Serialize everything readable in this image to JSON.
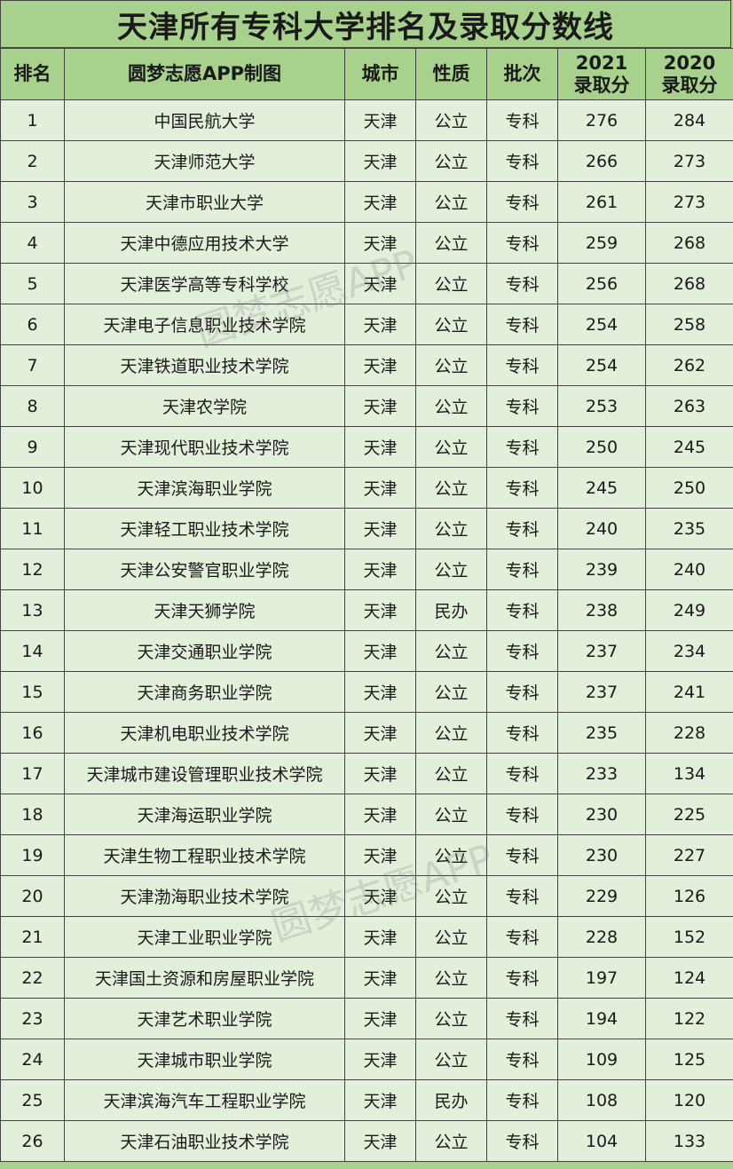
{
  "title": "天津所有专科大学排名及录取分数线",
  "watermark": "圆梦志愿APP",
  "colors": {
    "header_bg": "#a9d18e",
    "row_bg": "#e2efda",
    "border": "#444444"
  },
  "table": {
    "headers": [
      "排名",
      "圆梦志愿APP制图",
      "城市",
      "性质",
      "批次",
      "2021\n录取分",
      "2020\n录取分"
    ],
    "rows": [
      [
        "1",
        "中国民航大学",
        "天津",
        "公立",
        "专科",
        "276",
        "284"
      ],
      [
        "2",
        "天津师范大学",
        "天津",
        "公立",
        "专科",
        "266",
        "273"
      ],
      [
        "3",
        "天津市职业大学",
        "天津",
        "公立",
        "专科",
        "261",
        "273"
      ],
      [
        "4",
        "天津中德应用技术大学",
        "天津",
        "公立",
        "专科",
        "259",
        "268"
      ],
      [
        "5",
        "天津医学高等专科学校",
        "天津",
        "公立",
        "专科",
        "256",
        "268"
      ],
      [
        "6",
        "天津电子信息职业技术学院",
        "天津",
        "公立",
        "专科",
        "254",
        "258"
      ],
      [
        "7",
        "天津铁道职业技术学院",
        "天津",
        "公立",
        "专科",
        "254",
        "262"
      ],
      [
        "8",
        "天津农学院",
        "天津",
        "公立",
        "专科",
        "253",
        "263"
      ],
      [
        "9",
        "天津现代职业技术学院",
        "天津",
        "公立",
        "专科",
        "250",
        "245"
      ],
      [
        "10",
        "天津滨海职业学院",
        "天津",
        "公立",
        "专科",
        "245",
        "250"
      ],
      [
        "11",
        "天津轻工职业技术学院",
        "天津",
        "公立",
        "专科",
        "240",
        "235"
      ],
      [
        "12",
        "天津公安警官职业学院",
        "天津",
        "公立",
        "专科",
        "239",
        "240"
      ],
      [
        "13",
        "天津天狮学院",
        "天津",
        "民办",
        "专科",
        "238",
        "249"
      ],
      [
        "14",
        "天津交通职业学院",
        "天津",
        "公立",
        "专科",
        "237",
        "234"
      ],
      [
        "15",
        "天津商务职业学院",
        "天津",
        "公立",
        "专科",
        "237",
        "241"
      ],
      [
        "16",
        "天津机电职业技术学院",
        "天津",
        "公立",
        "专科",
        "235",
        "228"
      ],
      [
        "17",
        "天津城市建设管理职业技术学院",
        "天津",
        "公立",
        "专科",
        "233",
        "134"
      ],
      [
        "18",
        "天津海运职业学院",
        "天津",
        "公立",
        "专科",
        "230",
        "225"
      ],
      [
        "19",
        "天津生物工程职业技术学院",
        "天津",
        "公立",
        "专科",
        "230",
        "227"
      ],
      [
        "20",
        "天津渤海职业技术学院",
        "天津",
        "公立",
        "专科",
        "229",
        "126"
      ],
      [
        "21",
        "天津工业职业学院",
        "天津",
        "公立",
        "专科",
        "228",
        "152"
      ],
      [
        "22",
        "天津国土资源和房屋职业学院",
        "天津",
        "公立",
        "专科",
        "197",
        "124"
      ],
      [
        "23",
        "天津艺术职业学院",
        "天津",
        "公立",
        "专科",
        "194",
        "122"
      ],
      [
        "24",
        "天津城市职业学院",
        "天津",
        "公立",
        "专科",
        "109",
        "125"
      ],
      [
        "25",
        "天津滨海汽车工程职业学院",
        "天津",
        "民办",
        "专科",
        "108",
        "120"
      ],
      [
        "26",
        "天津石油职业技术学院",
        "天津",
        "公立",
        "专科",
        "104",
        "133"
      ]
    ]
  }
}
